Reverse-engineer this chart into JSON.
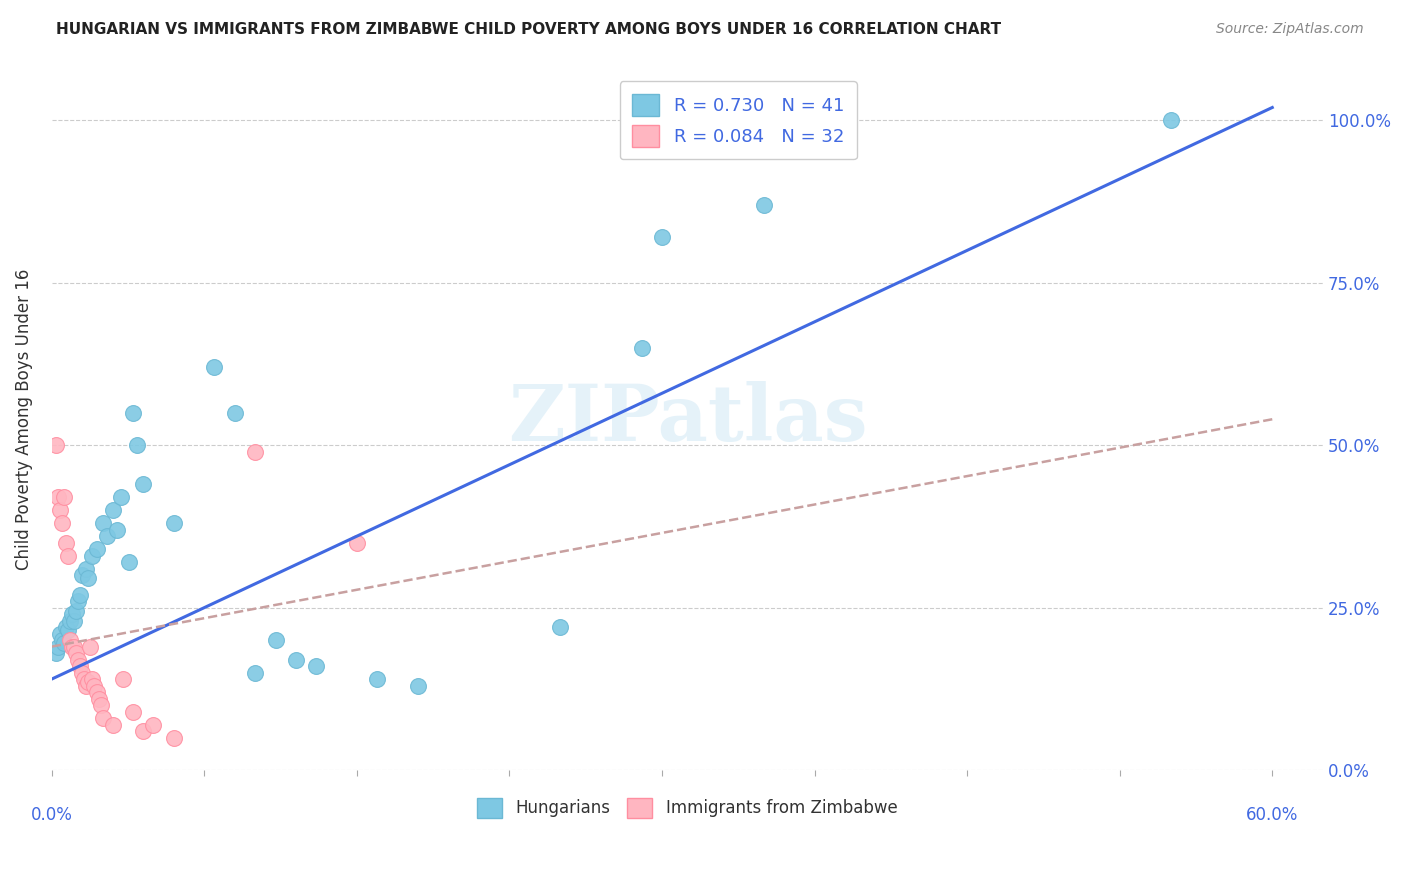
{
  "title": "HUNGARIAN VS IMMIGRANTS FROM ZIMBABWE CHILD POVERTY AMONG BOYS UNDER 16 CORRELATION CHART",
  "source": "Source: ZipAtlas.com",
  "ylabel": "Child Poverty Among Boys Under 16",
  "watermark": "ZIPatlas",
  "legend_blue_label": "Hungarians",
  "legend_pink_label": "Immigrants from Zimbabwe",
  "R_blue": 0.73,
  "N_blue": 41,
  "R_pink": 0.084,
  "N_pink": 32,
  "blue_color": "#7EC8E3",
  "pink_color": "#FFB6C1",
  "blue_edge_color": "#6BB8D4",
  "pink_edge_color": "#FF8EA0",
  "blue_line_color": "#4169E1",
  "pink_line_color": "#C8A0A0",
  "blue_scatter": [
    [
      0.002,
      0.18
    ],
    [
      0.003,
      0.19
    ],
    [
      0.004,
      0.21
    ],
    [
      0.005,
      0.2
    ],
    [
      0.006,
      0.195
    ],
    [
      0.007,
      0.22
    ],
    [
      0.008,
      0.215
    ],
    [
      0.009,
      0.23
    ],
    [
      0.01,
      0.24
    ],
    [
      0.011,
      0.23
    ],
    [
      0.012,
      0.245
    ],
    [
      0.013,
      0.26
    ],
    [
      0.014,
      0.27
    ],
    [
      0.015,
      0.3
    ],
    [
      0.017,
      0.31
    ],
    [
      0.018,
      0.295
    ],
    [
      0.02,
      0.33
    ],
    [
      0.022,
      0.34
    ],
    [
      0.025,
      0.38
    ],
    [
      0.027,
      0.36
    ],
    [
      0.03,
      0.4
    ],
    [
      0.032,
      0.37
    ],
    [
      0.034,
      0.42
    ],
    [
      0.038,
      0.32
    ],
    [
      0.04,
      0.55
    ],
    [
      0.042,
      0.5
    ],
    [
      0.045,
      0.44
    ],
    [
      0.06,
      0.38
    ],
    [
      0.08,
      0.62
    ],
    [
      0.09,
      0.55
    ],
    [
      0.1,
      0.15
    ],
    [
      0.11,
      0.2
    ],
    [
      0.12,
      0.17
    ],
    [
      0.13,
      0.16
    ],
    [
      0.16,
      0.14
    ],
    [
      0.18,
      0.13
    ],
    [
      0.25,
      0.22
    ],
    [
      0.29,
      0.65
    ],
    [
      0.3,
      0.82
    ],
    [
      0.35,
      0.87
    ],
    [
      0.55,
      1.0
    ]
  ],
  "pink_scatter": [
    [
      0.002,
      0.5
    ],
    [
      0.003,
      0.42
    ],
    [
      0.004,
      0.4
    ],
    [
      0.005,
      0.38
    ],
    [
      0.006,
      0.42
    ],
    [
      0.007,
      0.35
    ],
    [
      0.008,
      0.33
    ],
    [
      0.009,
      0.2
    ],
    [
      0.01,
      0.19
    ],
    [
      0.011,
      0.19
    ],
    [
      0.012,
      0.18
    ],
    [
      0.013,
      0.17
    ],
    [
      0.014,
      0.16
    ],
    [
      0.015,
      0.15
    ],
    [
      0.016,
      0.14
    ],
    [
      0.017,
      0.13
    ],
    [
      0.018,
      0.135
    ],
    [
      0.019,
      0.19
    ],
    [
      0.02,
      0.14
    ],
    [
      0.021,
      0.13
    ],
    [
      0.022,
      0.12
    ],
    [
      0.023,
      0.11
    ],
    [
      0.024,
      0.1
    ],
    [
      0.025,
      0.08
    ],
    [
      0.03,
      0.07
    ],
    [
      0.035,
      0.14
    ],
    [
      0.04,
      0.09
    ],
    [
      0.045,
      0.06
    ],
    [
      0.05,
      0.07
    ],
    [
      0.06,
      0.05
    ],
    [
      0.1,
      0.49
    ],
    [
      0.15,
      0.35
    ]
  ],
  "blue_trend_x": [
    0.0,
    0.6
  ],
  "blue_trend_y": [
    0.14,
    1.02
  ],
  "pink_trend_x": [
    0.0,
    0.6
  ],
  "pink_trend_y": [
    0.19,
    0.54
  ],
  "xlim": [
    0.0,
    0.625
  ],
  "ylim": [
    0.0,
    1.08
  ],
  "grid_color": "#CCCCCC",
  "background_color": "#FFFFFF",
  "accent_color": "#4169E1",
  "label_color": "#333333"
}
